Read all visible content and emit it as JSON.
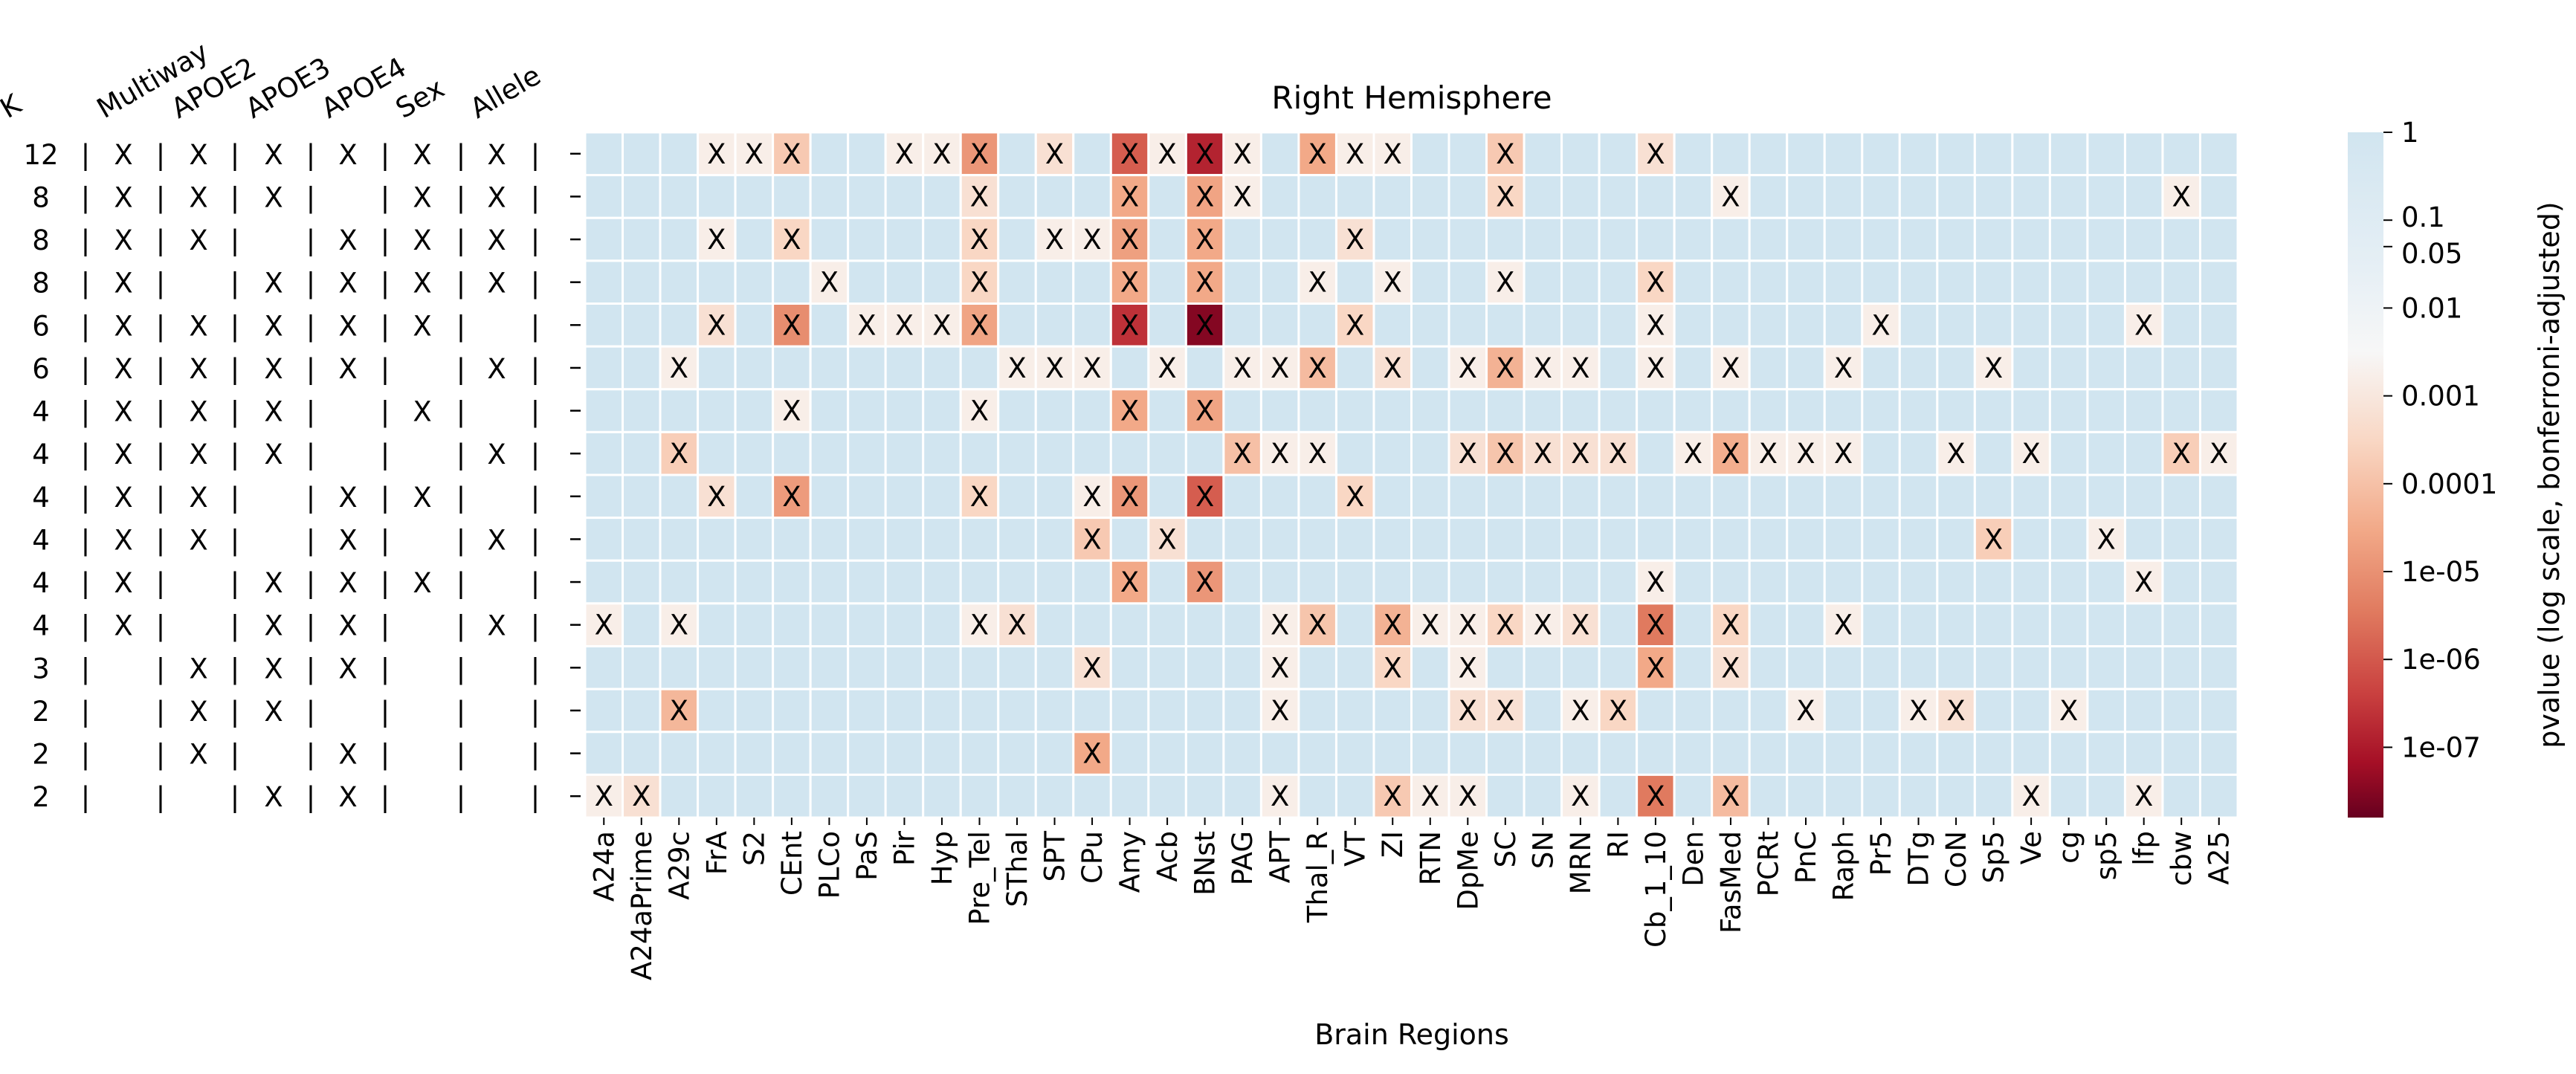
{
  "chart_data": {
    "type": "heatmap",
    "title": "Right Hemisphere",
    "xlabel": "Brain Regions",
    "colorbar_label": "pvalue (log scale, bonferroni-adjusted)",
    "colorbar_ticks": [
      "1",
      "0.1",
      "0.05",
      "0.01",
      "0.001",
      "0.0001",
      "1e-05",
      "1e-06",
      "1e-07"
    ],
    "colorbar_tick_values": [
      1,
      0.1,
      0.05,
      0.01,
      0.001,
      0.0001,
      1e-05,
      1e-06,
      1e-07
    ],
    "color_scale": "RdBu (log scale), 1 = light blue, small p = dark red",
    "colors": {
      "low_p": "#67001f",
      "mid": "#f7f7f7",
      "high_p": "#d1e5f0"
    },
    "regions": [
      "A24a",
      "A24aPrime",
      "A29c",
      "FrA",
      "S2",
      "CEnt",
      "PLCo",
      "PaS",
      "Pir",
      "Hyp",
      "Pre_Tel",
      "SThal",
      "SPT",
      "CPu",
      "Amy",
      "Acb",
      "BNst",
      "PAG",
      "APT",
      "Thal_R",
      "VT",
      "ZI",
      "RTN",
      "DpMe",
      "SC",
      "SN",
      "MRN",
      "RI",
      "Cb_1_10",
      "Den",
      "FasMed",
      "PCRt",
      "PnC",
      "Raph",
      "Pr5",
      "DTg",
      "CoN",
      "Sp5",
      "Ve",
      "cg",
      "sp5",
      "lfp",
      "cbw",
      "A25"
    ],
    "factor_headers": [
      "K",
      "Multiway",
      "APOE2",
      "APOE3",
      "APOE4",
      "Sex",
      "Allele"
    ],
    "rows": [
      {
        "K": "12",
        "factors": [
          "X",
          "X",
          "X",
          "X",
          "X",
          "X"
        ],
        "marks": [
          "FrA",
          "S2",
          "CEnt",
          "Pir",
          "Hyp",
          "Pre_Tel",
          "SPT",
          "Amy",
          "Acb",
          "BNst",
          "PAG",
          "Thal_R",
          "VT",
          "ZI",
          "SC",
          "Cb_1_10"
        ]
      },
      {
        "K": "8",
        "factors": [
          "X",
          "X",
          "X",
          "",
          "X",
          "X"
        ],
        "marks": [
          "Pre_Tel",
          "Amy",
          "BNst",
          "PAG",
          "SC",
          "FasMed",
          "cbw"
        ]
      },
      {
        "K": "8",
        "factors": [
          "X",
          "X",
          "",
          "X",
          "X",
          "X"
        ],
        "marks": [
          "FrA",
          "CEnt",
          "Pre_Tel",
          "SPT",
          "CPu",
          "Amy",
          "BNst",
          "VT"
        ]
      },
      {
        "K": "8",
        "factors": [
          "X",
          "",
          "X",
          "X",
          "X",
          "X"
        ],
        "marks": [
          "PLCo",
          "Pre_Tel",
          "Amy",
          "BNst",
          "Thal_R",
          "ZI",
          "SC",
          "Cb_1_10"
        ]
      },
      {
        "K": "6",
        "factors": [
          "X",
          "X",
          "X",
          "X",
          "X",
          ""
        ],
        "marks": [
          "FrA",
          "CEnt",
          "PaS",
          "Pir",
          "Hyp",
          "Pre_Tel",
          "Amy",
          "BNst",
          "VT",
          "Cb_1_10",
          "Pr5",
          "lfp"
        ]
      },
      {
        "K": "6",
        "factors": [
          "X",
          "X",
          "X",
          "X",
          "",
          "X"
        ],
        "marks": [
          "A29c",
          "SThal",
          "SPT",
          "CPu",
          "Acb",
          "PAG",
          "APT",
          "Thal_R",
          "ZI",
          "DpMe",
          "SC",
          "SN",
          "MRN",
          "Cb_1_10",
          "FasMed",
          "Raph",
          "Sp5"
        ]
      },
      {
        "K": "4",
        "factors": [
          "X",
          "X",
          "X",
          "",
          "X",
          ""
        ],
        "marks": [
          "CEnt",
          "Pre_Tel",
          "Amy",
          "BNst"
        ]
      },
      {
        "K": "4",
        "factors": [
          "X",
          "X",
          "X",
          "",
          "",
          "X"
        ],
        "marks": [
          "A29c",
          "PAG",
          "APT",
          "Thal_R",
          "DpMe",
          "SC",
          "SN",
          "MRN",
          "RI",
          "Den",
          "FasMed",
          "PCRt",
          "PnC",
          "Raph",
          "CoN",
          "Ve",
          "cbw",
          "A25"
        ]
      },
      {
        "K": "4",
        "factors": [
          "X",
          "X",
          "",
          "X",
          "X",
          ""
        ],
        "marks": [
          "FrA",
          "CEnt",
          "Pre_Tel",
          "CPu",
          "Amy",
          "BNst",
          "VT"
        ]
      },
      {
        "K": "4",
        "factors": [
          "X",
          "X",
          "",
          "X",
          "",
          "X"
        ],
        "marks": [
          "CPu",
          "Acb",
          "Sp5",
          "sp5"
        ]
      },
      {
        "K": "4",
        "factors": [
          "X",
          "",
          "X",
          "X",
          "X",
          ""
        ],
        "marks": [
          "Amy",
          "BNst",
          "Cb_1_10",
          "lfp"
        ]
      },
      {
        "K": "4",
        "factors": [
          "X",
          "",
          "X",
          "X",
          "",
          "X"
        ],
        "marks": [
          "A24a",
          "A29c",
          "Pre_Tel",
          "SThal",
          "APT",
          "Thal_R",
          "ZI",
          "RTN",
          "DpMe",
          "SC",
          "SN",
          "MRN",
          "Cb_1_10",
          "FasMed",
          "Raph"
        ]
      },
      {
        "K": "3",
        "factors": [
          "",
          "X",
          "X",
          "X",
          "",
          ""
        ],
        "marks": [
          "CPu",
          "APT",
          "ZI",
          "DpMe",
          "Cb_1_10",
          "FasMed"
        ]
      },
      {
        "K": "2",
        "factors": [
          "",
          "X",
          "X",
          "",
          "",
          ""
        ],
        "marks": [
          "A29c",
          "APT",
          "DpMe",
          "SC",
          "MRN",
          "RI",
          "PnC",
          "DTg",
          "CoN",
          "cg"
        ]
      },
      {
        "K": "2",
        "factors": [
          "",
          "X",
          "",
          "X",
          "",
          ""
        ],
        "marks": [
          "CPu"
        ]
      },
      {
        "K": "2",
        "factors": [
          "",
          "",
          "X",
          "X",
          "",
          ""
        ],
        "marks": [
          "A24a",
          "A24aPrime",
          "APT",
          "ZI",
          "RTN",
          "DpMe",
          "MRN",
          "Cb_1_10",
          "FasMed",
          "Ve",
          "lfp"
        ]
      }
    ],
    "log10_pvalues": [
      [
        0,
        0,
        0,
        -1.5,
        -1.5,
        -2.3,
        0,
        0,
        -1.5,
        -1.5,
        -3.4,
        0,
        -1.8,
        0,
        -4.5,
        -1.5,
        -5.6,
        -1.5,
        0,
        -3.0,
        -1.5,
        -1.5,
        0,
        0,
        -2.3,
        0,
        0,
        0,
        -1.8,
        0,
        0,
        0,
        0,
        0,
        0,
        0,
        0,
        0,
        0,
        0,
        0,
        0,
        0,
        0
      ],
      [
        0,
        0,
        0,
        0,
        0,
        0,
        0,
        0,
        0,
        0,
        -1.8,
        0,
        0,
        0,
        -3.0,
        0,
        -3.1,
        -1.5,
        0,
        0,
        0,
        0,
        0,
        0,
        -2.0,
        0,
        0,
        0,
        0,
        0,
        -1.5,
        0,
        0,
        0,
        0,
        0,
        0,
        0,
        0,
        0,
        0,
        0,
        -1.5,
        0
      ],
      [
        0,
        0,
        0,
        -1.5,
        0,
        -2.0,
        0,
        0,
        0,
        0,
        -2.0,
        0,
        -1.5,
        -1.5,
        -3.2,
        0,
        -3.0,
        0,
        0,
        0,
        -1.8,
        0,
        0,
        0,
        0,
        0,
        0,
        0,
        0,
        0,
        0,
        0,
        0,
        0,
        0,
        0,
        0,
        0,
        0,
        0,
        0,
        0,
        0,
        0
      ],
      [
        0,
        0,
        0,
        0,
        0,
        0,
        -1.5,
        0,
        0,
        0,
        -2.0,
        0,
        0,
        0,
        -3.0,
        0,
        -3.0,
        0,
        0,
        -1.5,
        0,
        -1.5,
        0,
        0,
        -1.5,
        0,
        0,
        0,
        -2.0,
        0,
        0,
        0,
        0,
        0,
        0,
        0,
        0,
        0,
        0,
        0,
        0,
        0,
        0,
        0
      ],
      [
        0,
        0,
        0,
        -1.8,
        0,
        -3.6,
        0,
        -1.5,
        -1.5,
        -1.5,
        -3.1,
        0,
        0,
        0,
        -5.3,
        0,
        -6.8,
        0,
        0,
        0,
        -2.0,
        0,
        0,
        0,
        0,
        0,
        0,
        0,
        -1.5,
        0,
        0,
        0,
        0,
        0,
        -1.5,
        0,
        0,
        0,
        0,
        0,
        0,
        -1.5,
        0,
        0
      ],
      [
        0,
        0,
        -1.5,
        0,
        0,
        0,
        0,
        0,
        0,
        0,
        0,
        -1.5,
        -1.5,
        -1.5,
        0,
        -1.5,
        0,
        -1.5,
        -1.5,
        -2.6,
        0,
        -1.8,
        0,
        -1.5,
        -2.8,
        -1.5,
        -1.5,
        0,
        -1.5,
        0,
        -1.5,
        0,
        0,
        -1.5,
        0,
        0,
        0,
        -1.5,
        0,
        0,
        0,
        0,
        0,
        0
      ],
      [
        0,
        0,
        0,
        0,
        0,
        -1.5,
        0,
        0,
        0,
        0,
        -1.5,
        0,
        0,
        0,
        -3.0,
        0,
        -3.1,
        0,
        0,
        0,
        0,
        0,
        0,
        0,
        0,
        0,
        0,
        0,
        0,
        0,
        0,
        0,
        0,
        0,
        0,
        0,
        0,
        0,
        0,
        0,
        0,
        0,
        0,
        0
      ],
      [
        0,
        0,
        -2.2,
        0,
        0,
        0,
        0,
        0,
        0,
        0,
        0,
        0,
        0,
        0,
        0,
        0,
        0,
        -2.5,
        -1.5,
        -1.5,
        0,
        0,
        0,
        -1.8,
        -2.4,
        -1.8,
        -1.8,
        -1.8,
        0,
        -1.5,
        -2.9,
        -1.5,
        -1.5,
        -1.5,
        0,
        0,
        -1.5,
        0,
        -1.5,
        0,
        0,
        0,
        -2.2,
        -1.5
      ],
      [
        0,
        0,
        0,
        -1.8,
        0,
        -3.3,
        0,
        0,
        0,
        0,
        -2.0,
        0,
        0,
        -1.5,
        -3.4,
        0,
        -4.5,
        0,
        0,
        0,
        -2.0,
        0,
        0,
        0,
        0,
        0,
        0,
        0,
        0,
        0,
        0,
        0,
        0,
        0,
        0,
        0,
        0,
        0,
        0,
        0,
        0,
        0,
        0,
        0
      ],
      [
        0,
        0,
        0,
        0,
        0,
        0,
        0,
        0,
        0,
        0,
        0,
        0,
        0,
        -2.3,
        0,
        -1.8,
        0,
        0,
        0,
        0,
        0,
        0,
        0,
        0,
        0,
        0,
        0,
        0,
        0,
        0,
        0,
        0,
        0,
        0,
        0,
        0,
        0,
        -2.2,
        0,
        0,
        -1.5,
        0,
        0,
        0
      ],
      [
        0,
        0,
        0,
        0,
        0,
        0,
        0,
        0,
        0,
        0,
        0,
        0,
        0,
        0,
        -3.0,
        0,
        -3.4,
        0,
        0,
        0,
        0,
        0,
        0,
        0,
        0,
        0,
        0,
        0,
        -1.5,
        0,
        0,
        0,
        0,
        0,
        0,
        0,
        0,
        0,
        0,
        0,
        0,
        -1.5,
        0,
        0
      ],
      [
        -1.5,
        0,
        -1.5,
        0,
        0,
        0,
        0,
        0,
        0,
        0,
        -1.5,
        -1.8,
        0,
        0,
        0,
        0,
        0,
        0,
        -1.5,
        -2.4,
        0,
        -2.8,
        -1.5,
        -1.5,
        -2.0,
        -1.5,
        -1.8,
        0,
        -4.0,
        0,
        -2.0,
        0,
        0,
        -1.5,
        0,
        0,
        0,
        0,
        0,
        0,
        0,
        0,
        0,
        0
      ],
      [
        0,
        0,
        0,
        0,
        0,
        0,
        0,
        0,
        0,
        0,
        0,
        0,
        0,
        -1.8,
        0,
        0,
        0,
        0,
        -1.5,
        0,
        0,
        -2.0,
        0,
        -1.5,
        0,
        0,
        0,
        0,
        -3.0,
        0,
        -1.8,
        0,
        0,
        0,
        0,
        0,
        0,
        0,
        0,
        0,
        0,
        0,
        0,
        0
      ],
      [
        0,
        0,
        -2.7,
        0,
        0,
        0,
        0,
        0,
        0,
        0,
        0,
        0,
        0,
        0,
        0,
        0,
        0,
        0,
        -1.5,
        0,
        0,
        0,
        0,
        -1.8,
        -1.8,
        0,
        -1.5,
        -2.0,
        0,
        0,
        0,
        0,
        -1.5,
        0,
        0,
        -1.5,
        -1.8,
        0,
        0,
        -1.5,
        0,
        0,
        0,
        0
      ],
      [
        0,
        0,
        0,
        0,
        0,
        0,
        0,
        0,
        0,
        0,
        0,
        0,
        0,
        -3.0,
        0,
        0,
        0,
        0,
        0,
        0,
        0,
        0,
        0,
        0,
        0,
        0,
        0,
        0,
        0,
        0,
        0,
        0,
        0,
        0,
        0,
        0,
        0,
        0,
        0,
        0,
        0,
        0,
        0,
        0
      ],
      [
        -1.5,
        -1.8,
        0,
        0,
        0,
        0,
        0,
        0,
        0,
        0,
        0,
        0,
        0,
        0,
        0,
        0,
        0,
        0,
        -1.5,
        0,
        0,
        -2.3,
        -1.5,
        -1.5,
        0,
        0,
        -1.5,
        0,
        -4.0,
        0,
        -2.6,
        0,
        0,
        0,
        0,
        0,
        0,
        0,
        -1.5,
        0,
        0,
        -1.5,
        0,
        0
      ]
    ]
  }
}
